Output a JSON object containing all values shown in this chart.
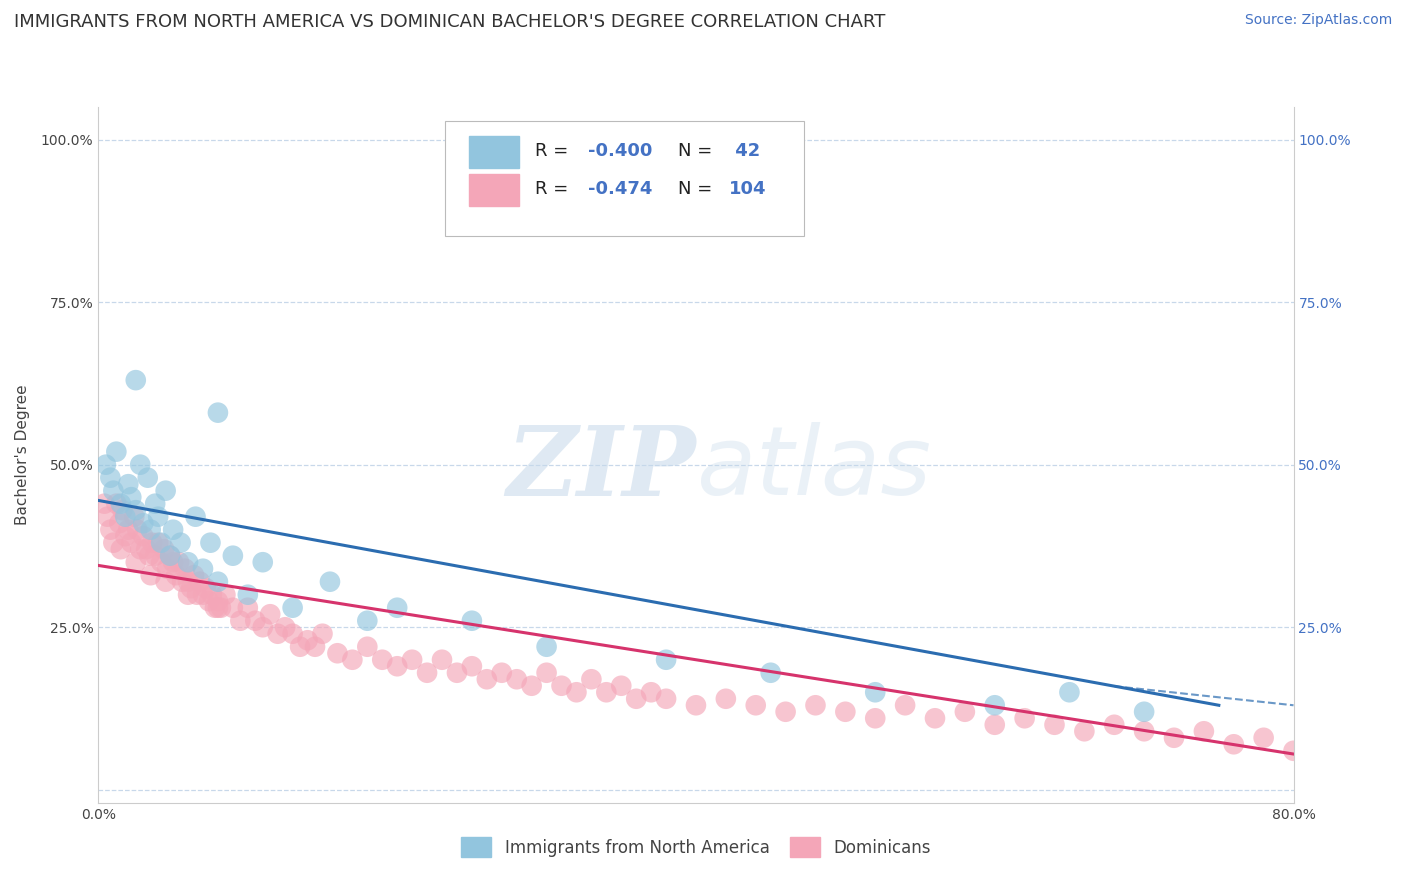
{
  "title": "IMMIGRANTS FROM NORTH AMERICA VS DOMINICAN BACHELOR'S DEGREE CORRELATION CHART",
  "source": "Source: ZipAtlas.com",
  "ylabel": "Bachelor's Degree",
  "legend_blue_label": "Immigrants from North America",
  "legend_pink_label": "Dominicans",
  "xlim": [
    0.0,
    0.8
  ],
  "ylim": [
    -0.02,
    1.05
  ],
  "yticks": [
    0.0,
    0.25,
    0.5,
    0.75,
    1.0
  ],
  "xticks": [
    0.0,
    0.1,
    0.2,
    0.3,
    0.4,
    0.5,
    0.6,
    0.7,
    0.8
  ],
  "blue_color": "#92c5de",
  "pink_color": "#f4a6b8",
  "blue_line_color": "#2b6cb0",
  "pink_line_color": "#d6336c",
  "background_color": "#ffffff",
  "grid_color": "#c8d8ea",
  "watermark_color": "#c5d8ea",
  "title_fontsize": 13,
  "axis_fontsize": 11,
  "tick_fontsize": 10,
  "legend_fontsize": 13,
  "source_fontsize": 10,
  "blue_r": "-0.400",
  "blue_n": "42",
  "pink_r": "-0.474",
  "pink_n": "104"
}
